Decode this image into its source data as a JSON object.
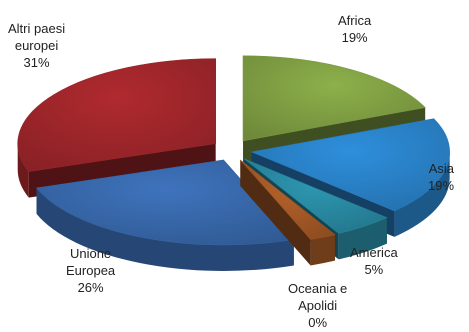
{
  "chart_data": {
    "type": "pie",
    "title": "",
    "slices": [
      {
        "name": "Africa",
        "value": 19,
        "label": "19%",
        "color": "#8db04a"
      },
      {
        "name": "Asia",
        "value": 19,
        "label": "19%",
        "color": "#2e8fdc"
      },
      {
        "name": "America",
        "value": 5,
        "label": "5%",
        "color": "#2d97b2"
      },
      {
        "name": "Oceania e Apolidi",
        "value": 0,
        "label": "0%",
        "color": "#b5622a"
      },
      {
        "name": "Unione Europea",
        "value": 26,
        "label": "26%",
        "color": "#3e73bd"
      },
      {
        "name": "Altri paesi europei",
        "value": 31,
        "label": "31%",
        "color": "#b02a2f"
      }
    ]
  },
  "labels": {
    "africa": {
      "line1": "Africa",
      "pct": "19%"
    },
    "asia": {
      "line1": "Asia",
      "pct": "19%"
    },
    "america": {
      "line1": "America",
      "pct": "5%"
    },
    "oceania": {
      "line1": "Oceania e",
      "line2": "Apolidi",
      "pct": "0%"
    },
    "ue": {
      "line1": "Unione",
      "line2": "Europea",
      "pct": "26%"
    },
    "altri": {
      "line1": "Altri paesi",
      "line2": "europei",
      "pct": "31%"
    }
  }
}
